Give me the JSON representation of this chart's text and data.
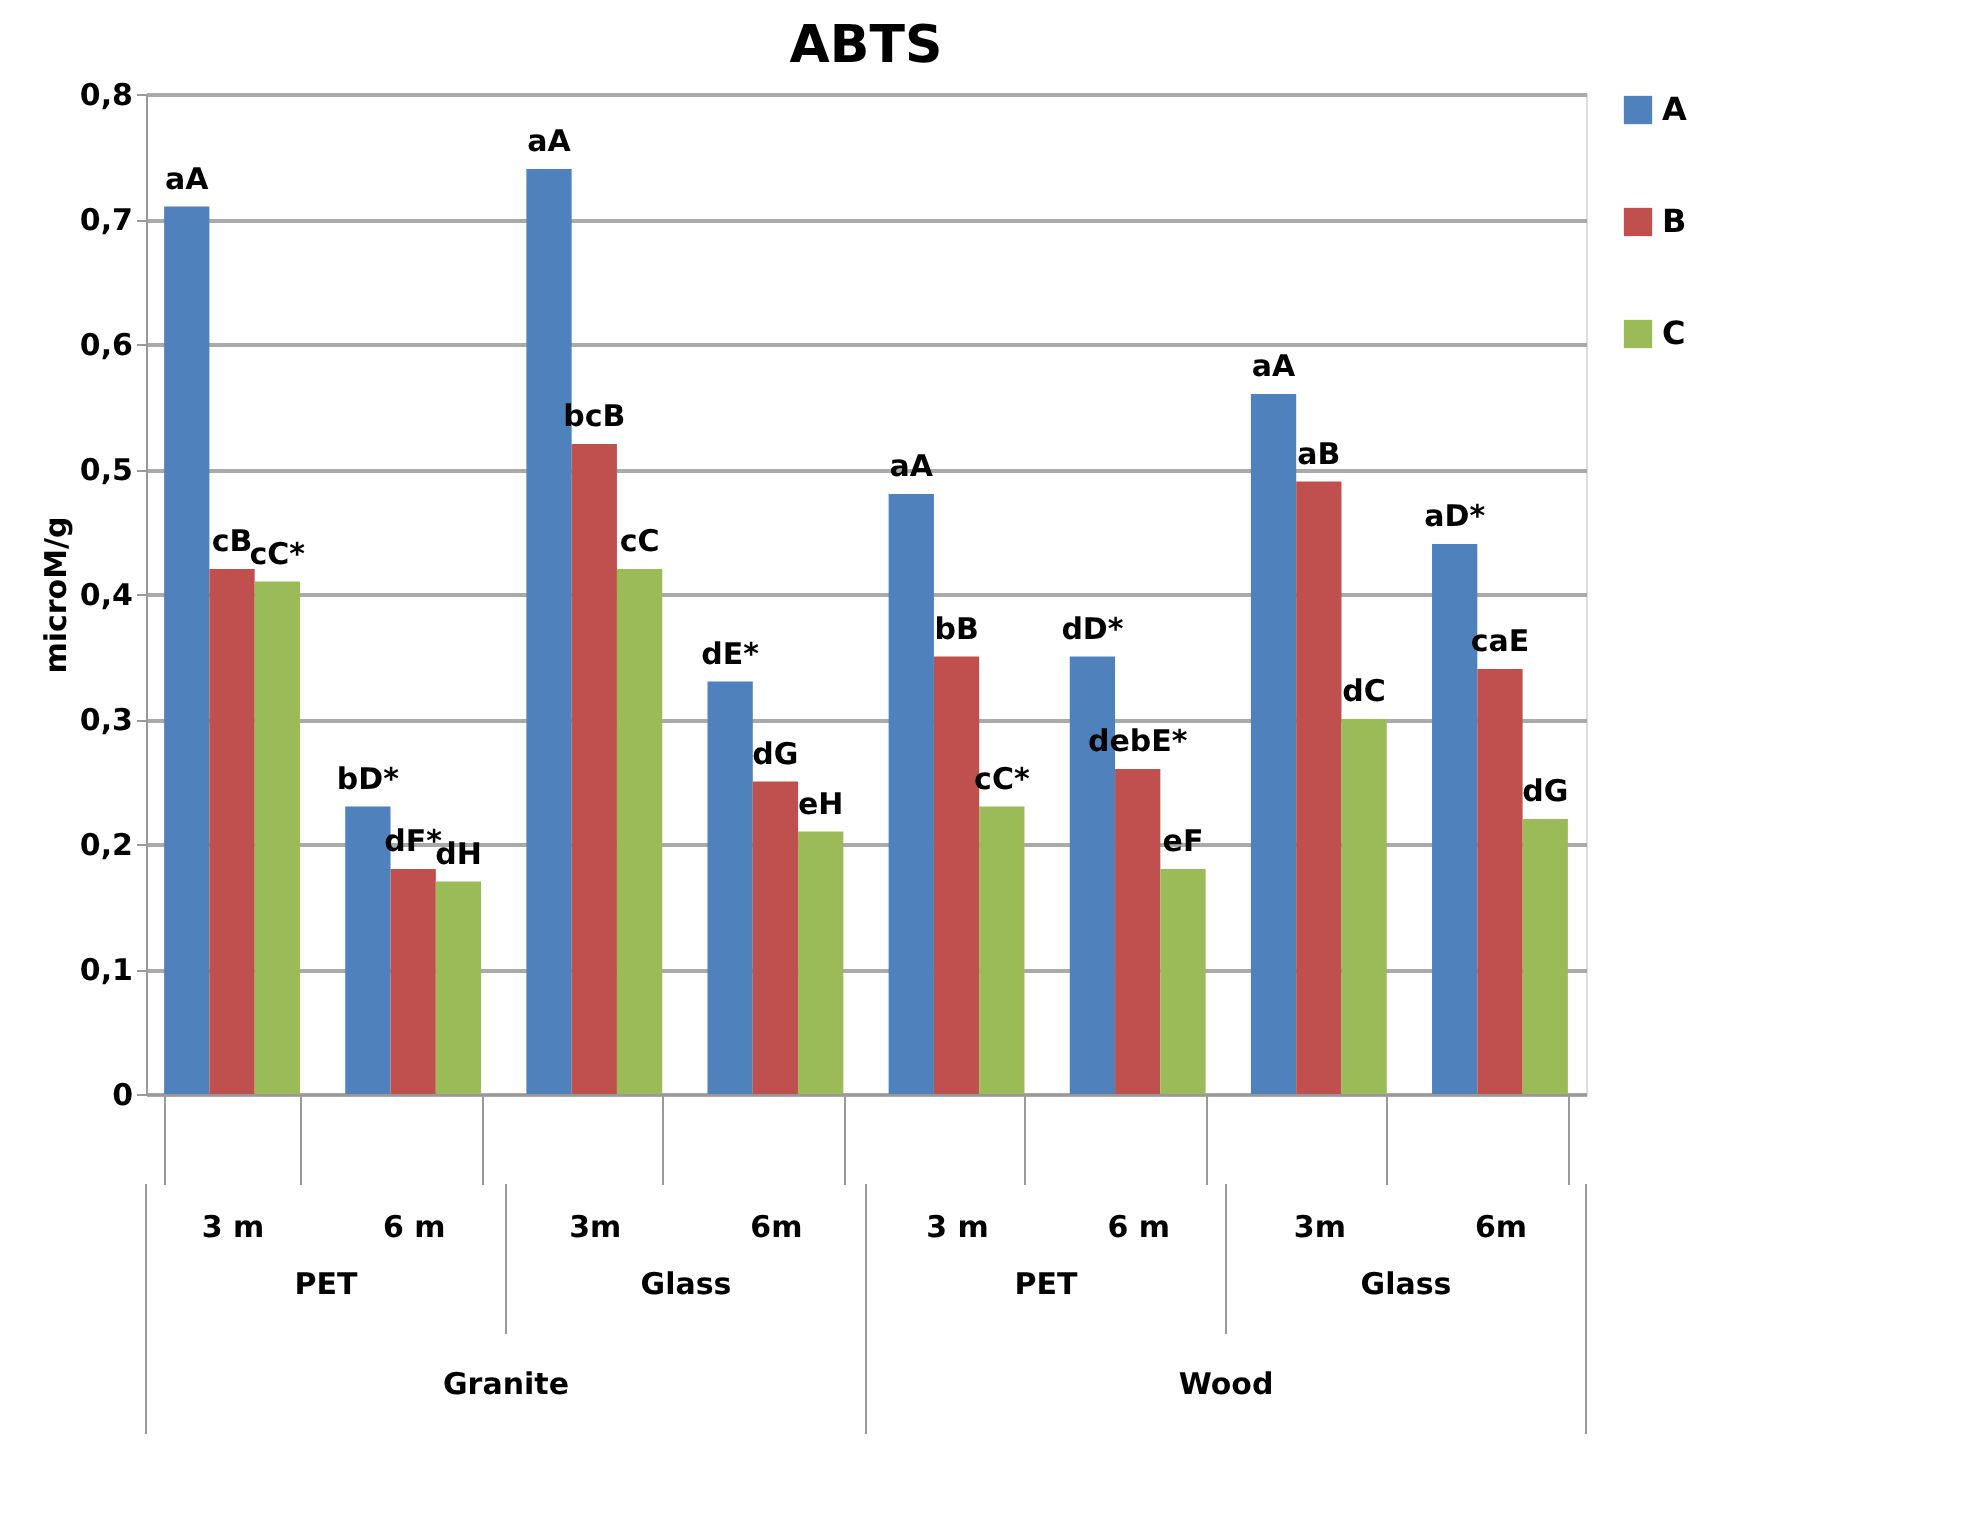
{
  "chart_data": {
    "type": "bar",
    "title": "ABTS",
    "ylabel": "microM/g",
    "categories": [
      "3 m",
      "6 m",
      "3m",
      "6m",
      "3 m",
      "6 m",
      "3m",
      "6m"
    ],
    "annotations": [
      "PET",
      "Glass",
      "PET",
      "Glass",
      "Granite",
      "Wood"
    ],
    "series": [
      {
        "name": "A",
        "color": "#4f81bd",
        "values": [
          0.71,
          0.23,
          0.74,
          0.33,
          0.48,
          0.35,
          0.56,
          0.44
        ],
        "value_labels": [
          "aA",
          "bD*",
          "aA",
          "dE*",
          "aA",
          "dD*",
          "aA",
          "aD*"
        ]
      },
      {
        "name": "B",
        "color": "#c0504d",
        "values": [
          0.42,
          0.18,
          0.52,
          0.25,
          0.35,
          0.26,
          0.49,
          0.34
        ],
        "value_labels": [
          "cB",
          "dF*",
          "bcB",
          "dG",
          "bB",
          "debE*",
          "aB",
          "caE"
        ]
      },
      {
        "name": "C",
        "color": "#9bbb59",
        "values": [
          0.41,
          0.17,
          0.42,
          0.21,
          0.23,
          0.18,
          0.3,
          0.22
        ],
        "value_labels": [
          "cC*",
          "dH",
          "cC",
          "eH",
          "cC*",
          "eF",
          "dC",
          "dG"
        ]
      }
    ],
    "ylim": [
      0,
      0.8
    ],
    "yticks": [
      0,
      {
        "value": 0.1,
        "label": "0,1"
      },
      {
        "value": 0.2,
        "label": "0,2"
      },
      {
        "value": 0.3,
        "label": "0,3"
      },
      {
        "value": 0.4,
        "label": "0,4"
      },
      {
        "value": 0.5,
        "label": "0,5"
      },
      {
        "value": 0.6,
        "label": "0,6"
      },
      {
        "value": 0.7,
        "label": "0,7"
      },
      {
        "value": 0.8,
        "label": "0,8"
      }
    ],
    "grid": "y",
    "legend": "right"
  }
}
